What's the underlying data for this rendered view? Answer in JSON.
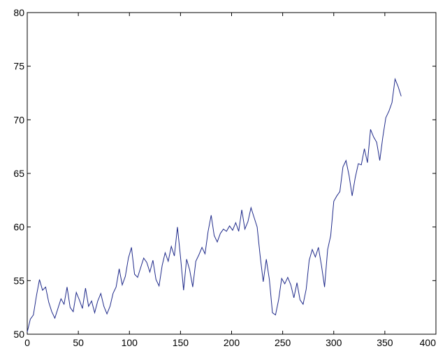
{
  "chart_data": {
    "type": "line",
    "title": "",
    "xlabel": "",
    "ylabel": "",
    "xlim": [
      0,
      400
    ],
    "ylim": [
      50,
      80
    ],
    "x_ticks": [
      0,
      50,
      100,
      150,
      200,
      250,
      300,
      350,
      400
    ],
    "y_ticks": [
      50,
      55,
      60,
      65,
      70,
      75,
      80
    ],
    "x_tick_labels": [
      "0",
      "50",
      "100",
      "150",
      "200",
      "250",
      "300",
      "350",
      "400"
    ],
    "y_tick_labels": [
      "50",
      "55",
      "60",
      "65",
      "70",
      "75",
      "80"
    ],
    "grid": false,
    "legend": "none",
    "series": [
      {
        "color": "#1f2a8a",
        "x": [
          0,
          3,
          6,
          9,
          12,
          15,
          18,
          21,
          24,
          27,
          30,
          33,
          36,
          39,
          42,
          45,
          48,
          51,
          54,
          57,
          60,
          63,
          66,
          69,
          72,
          75,
          78,
          81,
          84,
          87,
          90,
          93,
          96,
          99,
          102,
          105,
          108,
          111,
          114,
          117,
          120,
          123,
          126,
          129,
          132,
          135,
          138,
          141,
          144,
          147,
          150,
          153,
          156,
          159,
          162,
          165,
          168,
          171,
          174,
          177,
          180,
          183,
          186,
          189,
          192,
          195,
          198,
          201,
          204,
          207,
          210,
          213,
          216,
          219,
          222,
          225,
          228,
          231,
          234,
          237,
          240,
          243,
          246,
          249,
          252,
          255,
          258,
          261,
          264,
          267,
          270,
          273,
          276,
          279,
          282,
          285,
          288,
          291,
          294,
          297,
          300,
          303,
          306,
          309,
          312,
          315,
          318,
          321,
          324,
          327,
          330,
          333,
          336,
          339,
          342,
          345,
          348,
          351,
          354,
          357,
          360,
          363,
          366
        ],
        "values": [
          50.2,
          51.4,
          51.8,
          53.6,
          55.1,
          54.1,
          54.4,
          53.0,
          52.1,
          51.5,
          52.4,
          53.3,
          52.8,
          54.4,
          52.5,
          52.1,
          53.9,
          53.2,
          52.4,
          54.3,
          52.6,
          53.1,
          52.0,
          53.1,
          53.8,
          52.6,
          51.9,
          52.6,
          53.8,
          54.4,
          56.1,
          54.6,
          55.4,
          57.1,
          58.1,
          55.6,
          55.3,
          56.2,
          57.1,
          56.7,
          55.8,
          56.9,
          55.1,
          54.5,
          56.4,
          57.6,
          56.8,
          58.2,
          57.3,
          60.0,
          57.2,
          54.1,
          57.0,
          56.0,
          54.4,
          56.8,
          57.4,
          58.1,
          57.5,
          59.6,
          61.1,
          59.2,
          58.6,
          59.4,
          59.8,
          59.6,
          60.1,
          59.7,
          60.4,
          59.6,
          61.6,
          59.8,
          60.5,
          61.8,
          60.9,
          60.0,
          57.3,
          54.9,
          57.0,
          55.1,
          52.0,
          51.8,
          53.2,
          55.2,
          54.7,
          55.3,
          54.6,
          53.4,
          54.8,
          53.2,
          52.8,
          54.2,
          56.9,
          57.9,
          57.2,
          58.1,
          56.4,
          54.4,
          57.9,
          59.2,
          62.4,
          62.9,
          63.3,
          65.6,
          66.2,
          64.8,
          62.9,
          64.6,
          65.9,
          65.8,
          67.3,
          66.0,
          69.1,
          68.4,
          67.9,
          66.2,
          68.4,
          70.2,
          70.8,
          71.6,
          73.8,
          73.1,
          72.2
        ]
      }
    ]
  }
}
